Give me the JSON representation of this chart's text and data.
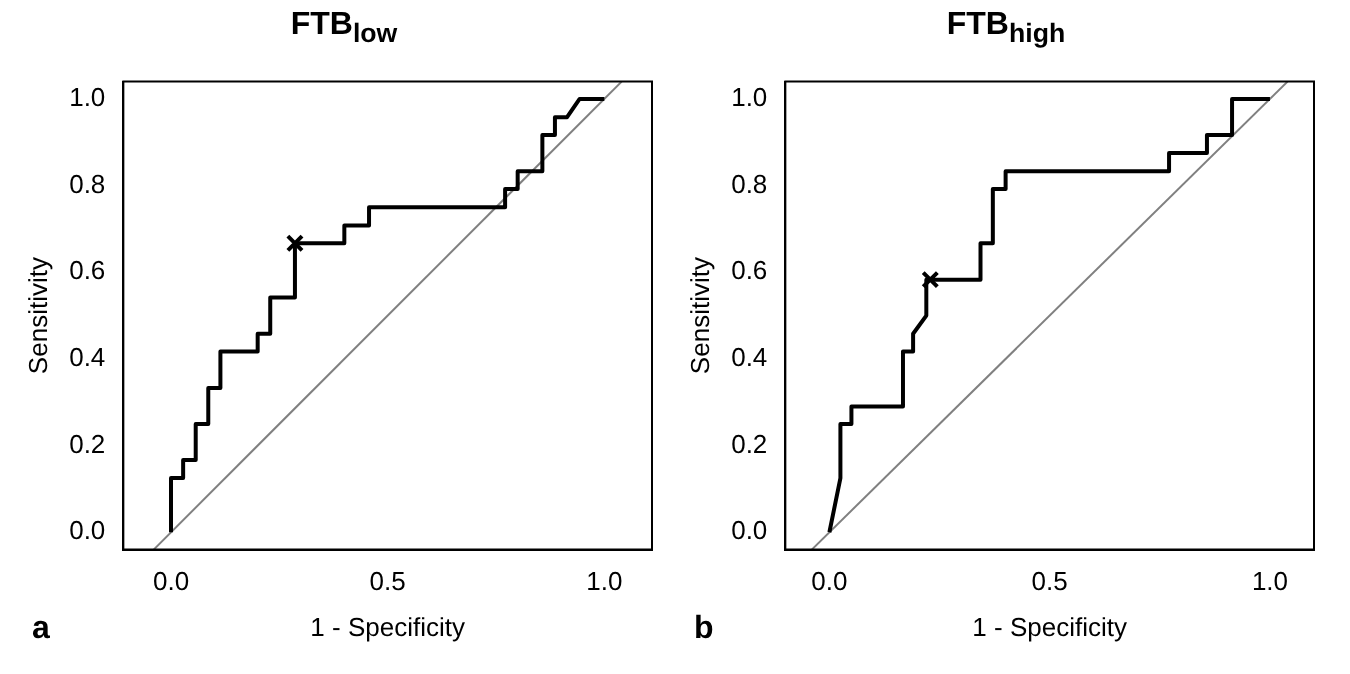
{
  "chart_data": [
    {
      "type": "line",
      "title": "FTB$_{low}$",
      "xlabel": "1 - Specificity",
      "ylabel": "Sensitivity",
      "annotations": [
        "a"
      ],
      "xlim": [
        -0.11,
        1.11
      ],
      "ylim": [
        -0.04,
        1.04
      ],
      "xticks": [
        {
          "value": 0,
          "label": "0.0"
        },
        {
          "value": 0.5,
          "label": "0.5"
        },
        {
          "value": 1,
          "label": "1.0"
        }
      ],
      "yticks": [
        {
          "value": 0,
          "label": "0.0"
        },
        {
          "value": 0.2,
          "label": "0.2"
        },
        {
          "value": 0.4,
          "label": "0.4"
        },
        {
          "value": 0.6,
          "label": "0.6"
        },
        {
          "value": 0.8,
          "label": "0.8"
        },
        {
          "value": 1,
          "label": "1.0"
        }
      ],
      "grid": false,
      "legend": false,
      "line_style": "solid",
      "series": [
        {
          "type": "line",
          "color": "#000000",
          "marker": "none",
          "x": [
            0,
            0,
            0.028,
            0.028,
            0.057,
            0.057,
            0.086,
            0.086,
            0.114,
            0.114,
            0.2,
            0.2,
            0.229,
            0.229,
            0.286,
            0.286,
            0.4,
            0.4,
            0.457,
            0.457,
            0.771,
            0.771,
            0.8,
            0.8,
            0.857,
            0.857,
            0.886,
            0.886,
            0.914,
            0.943,
            1
          ],
          "values": [
            0,
            0.125,
            0.125,
            0.167,
            0.167,
            0.25,
            0.25,
            0.333,
            0.333,
            0.417,
            0.417,
            0.458,
            0.458,
            0.542,
            0.542,
            0.667,
            0.667,
            0.708,
            0.708,
            0.75,
            0.75,
            0.792,
            0.792,
            0.833,
            0.833,
            0.917,
            0.917,
            0.958,
            0.958,
            1,
            1
          ]
        },
        {
          "type": "scatter",
          "color": "#000000",
          "marker": "cross",
          "x": [
            0.286
          ],
          "values": [
            0.667
          ]
        },
        {
          "type": "line",
          "color": "#808080",
          "marker": "none",
          "x": [
            -0.04,
            1.04
          ],
          "values": [
            -0.04,
            1.04
          ]
        }
      ]
    },
    {
      "type": "line",
      "title": "FTB$_{high}$",
      "xlabel": "1 - Specificity",
      "ylabel": "Sensitivity",
      "annotations": [
        "b"
      ],
      "xlim": [
        -0.1,
        1.1
      ],
      "ylim": [
        -0.04,
        1.04
      ],
      "xticks": [
        {
          "value": 0,
          "label": "0.0"
        },
        {
          "value": 0.5,
          "label": "0.5"
        },
        {
          "value": 1,
          "label": "1.0"
        }
      ],
      "yticks": [
        {
          "value": 0,
          "label": "0.0"
        },
        {
          "value": 0.2,
          "label": "0.2"
        },
        {
          "value": 0.4,
          "label": "0.4"
        },
        {
          "value": 0.6,
          "label": "0.6"
        },
        {
          "value": 0.8,
          "label": "0.8"
        },
        {
          "value": 1,
          "label": "1.0"
        }
      ],
      "grid": false,
      "legend": false,
      "line_style": "solid",
      "series": [
        {
          "type": "line",
          "color": "#000000",
          "marker": "none",
          "x": [
            0,
            0.025,
            0.025,
            0.05,
            0.05,
            0.167,
            0.167,
            0.19,
            0.19,
            0.22,
            0.22,
            0.343,
            0.343,
            0.371,
            0.371,
            0.4,
            0.4,
            0.771,
            0.771,
            0.857,
            0.857,
            0.914,
            0.914,
            1
          ],
          "values": [
            0,
            0.125,
            0.25,
            0.25,
            0.29,
            0.29,
            0.417,
            0.417,
            0.458,
            0.5,
            0.583,
            0.583,
            0.667,
            0.667,
            0.792,
            0.792,
            0.833,
            0.833,
            0.875,
            0.875,
            0.917,
            0.917,
            1,
            1
          ]
        },
        {
          "type": "scatter",
          "color": "#000000",
          "marker": "cross",
          "x": [
            0.229
          ],
          "values": [
            0.583
          ]
        },
        {
          "type": "line",
          "color": "#808080",
          "marker": "none",
          "x": [
            -0.04,
            1.04
          ],
          "values": [
            -0.04,
            1.04
          ]
        }
      ]
    }
  ]
}
